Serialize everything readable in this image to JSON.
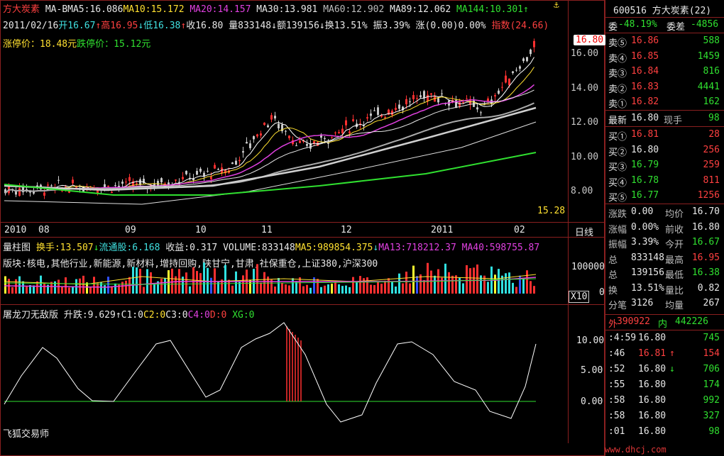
{
  "header": {
    "stock_name": "方大炭素",
    "ma_label": "MA-B",
    "ma5": "MA5:16.086",
    "ma10": "MA10:15.172",
    "ma20": "MA20:14.157",
    "ma30": "MA30:13.981",
    "ma60": "MA60:12.902",
    "ma89": "MA89:12.062",
    "ma144": "MA144:10.301",
    "ma144_arrow": "↑",
    "top_icon": "⚓"
  },
  "quote_line": {
    "date": "2011/02/16",
    "open": "开16.67",
    "open_arrow": "↑",
    "high": "高16.95",
    "high_arrow": "↓",
    "low": "低16.38",
    "low_arrow": "↑",
    "close": "收16.80",
    "volume": "量833148",
    "vol_arrow": "↓",
    "amount": "额139156",
    "amt_arrow": "↓",
    "turnover": "换13.51%",
    "amplitude": "振3.39%",
    "change": "涨(0.00)0.00%",
    "index": "指数(24.66)"
  },
  "limits": {
    "up": "涨停价：18.48元",
    "down": "跌停价：15.12元"
  },
  "price_axis": [
    "16.00",
    "14.00",
    "12.00",
    "10.00",
    "8.00"
  ],
  "current_price_tag": "16.80",
  "low_label": "15.28",
  "time_axis": [
    "2010",
    "08",
    "09",
    "10",
    "11",
    "12",
    "2011",
    "02"
  ],
  "period_label": "日线",
  "volume_panel": {
    "title": "量柱图",
    "turnover": "换手:13.507",
    "turnover_arrow": "↓",
    "float": "流通股:6.168",
    "earnings": "收益:0.317",
    "volume": "VOLUME:833148",
    "ma5": "MA5:989854.375",
    "ma5_arrow": "↓",
    "ma13": "MA13:718212.37",
    "ma40": "MA40:598755.87",
    "sectors": "版块:核电,其他行业,新能源,新材料,增持回购,陕甘宁,甘肃,社保重仓,上证380,沪深300",
    "axis_top": "100000",
    "axis_zero": "0",
    "multiplier": "X10"
  },
  "indicator_panel": {
    "title": "屠龙刀无敌版",
    "rise": "升跌:9.629",
    "rise_arrow": "↑",
    "c1": "C1:0",
    "c2": "C2:0",
    "c3": "C3:0",
    "c4": "C4:0",
    "d": "D:0",
    "xg": "XG:0",
    "axis": [
      "10.00",
      "5.00",
      "0.00"
    ]
  },
  "watermark": "飞狐交易师",
  "corner_watermark": "www.dhcj.com",
  "right_panel": {
    "code_name": "600516 方大炭素(22)",
    "weibi_label": "委",
    "weibi": "-48.19%",
    "weicha_label": "委差",
    "weicha": "-4856",
    "asks": [
      {
        "label": "卖⑤",
        "price": "16.86",
        "vol": "588"
      },
      {
        "label": "卖④",
        "price": "16.85",
        "vol": "1459"
      },
      {
        "label": "卖③",
        "price": "16.84",
        "vol": "816"
      },
      {
        "label": "卖②",
        "price": "16.83",
        "vol": "4441"
      },
      {
        "label": "卖①",
        "price": "16.82",
        "vol": "162"
      }
    ],
    "latest_label": "最新",
    "latest": "16.80",
    "xianshou_label": "现手",
    "xianshou": "98",
    "bids": [
      {
        "label": "买①",
        "price": "16.81",
        "vol": "28"
      },
      {
        "label": "买②",
        "price": "16.80",
        "vol": "256"
      },
      {
        "label": "买③",
        "price": "16.79",
        "vol": "259"
      },
      {
        "label": "买④",
        "price": "16.78",
        "vol": "811"
      },
      {
        "label": "买⑤",
        "price": "16.77",
        "vol": "1256"
      }
    ],
    "stats": [
      {
        "l1": "涨跌",
        "v1": "0.00",
        "l2": "均价",
        "v2": "16.70"
      },
      {
        "l1": "涨幅",
        "v1": "0.00%",
        "l2": "前收",
        "v2": "16.80"
      },
      {
        "l1": "振幅",
        "v1": "3.39%",
        "l2": "今开",
        "v2": "16.67"
      },
      {
        "l1": "总",
        "v1": "833148",
        "l2": "最高",
        "v2": "16.95"
      },
      {
        "l1": "总",
        "v1": "139156",
        "l2": "最低",
        "v2": "16.38"
      },
      {
        "l1": "换",
        "v1": "13.51%",
        "l2": "量比",
        "v2": "0.82"
      },
      {
        "l1": "分笔",
        "v1": "3126",
        "l2": "均量",
        "v2": "267"
      }
    ],
    "outer_label": "外",
    "outer": "390922",
    "inner_label": "内",
    "inner": "442226",
    "ticks": [
      {
        "t": ":4:59",
        "p": "16.80",
        "arrow": "",
        "v": "745"
      },
      {
        "t": ":46",
        "p": "16.81",
        "arrow": "↑",
        "v": "154"
      },
      {
        "t": ":52",
        "p": "16.80",
        "arrow": "↓",
        "v": "706"
      },
      {
        "t": ":55",
        "p": "16.80",
        "arrow": "",
        "v": "174"
      },
      {
        "t": ":58",
        "p": "16.80",
        "arrow": "",
        "v": "992"
      },
      {
        "t": ":58",
        "p": "16.80",
        "arrow": "",
        "v": "327"
      },
      {
        "t": ":01",
        "p": "16.80",
        "arrow": "",
        "v": "98"
      }
    ]
  },
  "colors": {
    "up": "#ff3030",
    "down": "#30e0e0",
    "grid": "#8a1f1f",
    "ma5": "#ffffff",
    "ma10": "#ffe030",
    "ma20": "#e040e0",
    "ma60": "#30e030"
  }
}
